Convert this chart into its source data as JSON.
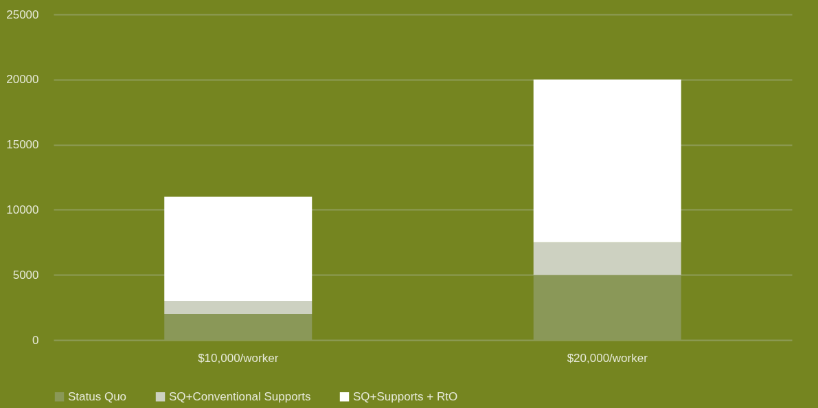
{
  "chart_data": {
    "type": "bar",
    "stacked": true,
    "categories": [
      "$10,000/worker",
      "$20,000/worker"
    ],
    "series": [
      {
        "name": "Status Quo",
        "color": "#8a9858",
        "values": [
          2000,
          5000
        ]
      },
      {
        "name": "SQ+Conventional Supports",
        "color": "#cdd1c1",
        "values": [
          1000,
          2500
        ]
      },
      {
        "name": "SQ+Supports + RtO",
        "color": "#ffffff",
        "values": [
          8000,
          12500
        ]
      }
    ],
    "ylim": [
      0,
      25000
    ],
    "yticks": [
      0,
      5000,
      10000,
      15000,
      20000,
      25000
    ],
    "grid": "y",
    "legend": "bottom"
  }
}
